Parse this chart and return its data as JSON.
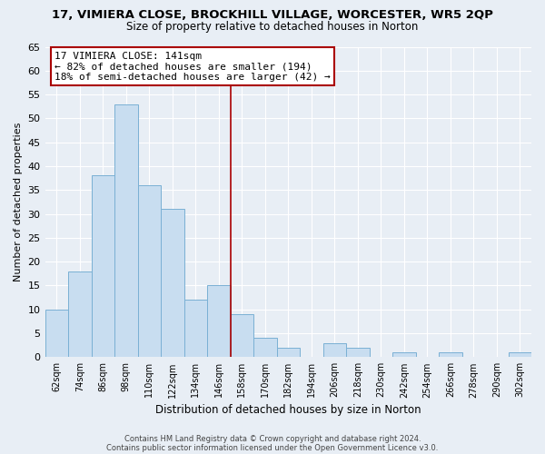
{
  "title": "17, VIMIERA CLOSE, BROCKHILL VILLAGE, WORCESTER, WR5 2QP",
  "subtitle": "Size of property relative to detached houses in Norton",
  "xlabel": "Distribution of detached houses by size in Norton",
  "ylabel": "Number of detached properties",
  "bar_color": "#c8ddf0",
  "bar_edge_color": "#7ab0d4",
  "categories": [
    "62sqm",
    "74sqm",
    "86sqm",
    "98sqm",
    "110sqm",
    "122sqm",
    "134sqm",
    "146sqm",
    "158sqm",
    "170sqm",
    "182sqm",
    "194sqm",
    "206sqm",
    "218sqm",
    "230sqm",
    "242sqm",
    "254sqm",
    "266sqm",
    "278sqm",
    "290sqm",
    "302sqm"
  ],
  "values": [
    10,
    18,
    38,
    53,
    36,
    31,
    12,
    15,
    9,
    4,
    2,
    0,
    3,
    2,
    0,
    1,
    0,
    1,
    0,
    0,
    1
  ],
  "ylim": [
    0,
    65
  ],
  "yticks": [
    0,
    5,
    10,
    15,
    20,
    25,
    30,
    35,
    40,
    45,
    50,
    55,
    60,
    65
  ],
  "annotation_title": "17 VIMIERA CLOSE: 141sqm",
  "annotation_line1": "← 82% of detached houses are smaller (194)",
  "annotation_line2": "18% of semi-detached houses are larger (42) →",
  "vline_x": 7.5,
  "box_color": "#ffffff",
  "box_edge_color": "#aa0000",
  "background_color": "#e8eef5",
  "grid_color": "#ffffff",
  "footer1": "Contains HM Land Registry data © Crown copyright and database right 2024.",
  "footer2": "Contains public sector information licensed under the Open Government Licence v3.0."
}
